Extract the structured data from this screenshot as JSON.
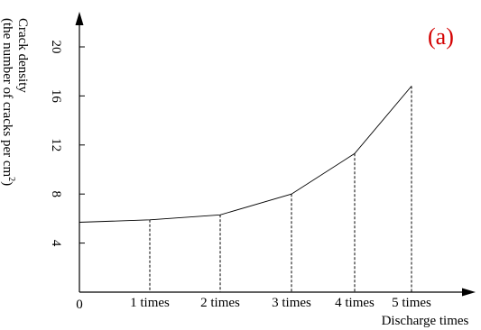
{
  "chart_data": {
    "type": "line",
    "panel_label": "(a)",
    "title": "",
    "xlabel": "Discharge times",
    "ylabel_line1": "Crack density",
    "ylabel_line2": "(the number of cracks per cm",
    "ylabel_sup": "2",
    "ylabel_close": ")",
    "origin_label": "0",
    "categories": [
      "1 times",
      "2 times",
      "3 times",
      "4 times",
      "5 times"
    ],
    "x": [
      0,
      1,
      2,
      3,
      4,
      5
    ],
    "values": [
      5.7,
      5.9,
      6.3,
      8.0,
      11.3,
      16.8
    ],
    "yticks": [
      4,
      8,
      12,
      16,
      20
    ],
    "ylim": [
      0,
      22
    ],
    "grid": false,
    "legend": "none",
    "drop_lines": true,
    "colors": {
      "line": "#000000",
      "panel_label": "#d40000"
    }
  }
}
